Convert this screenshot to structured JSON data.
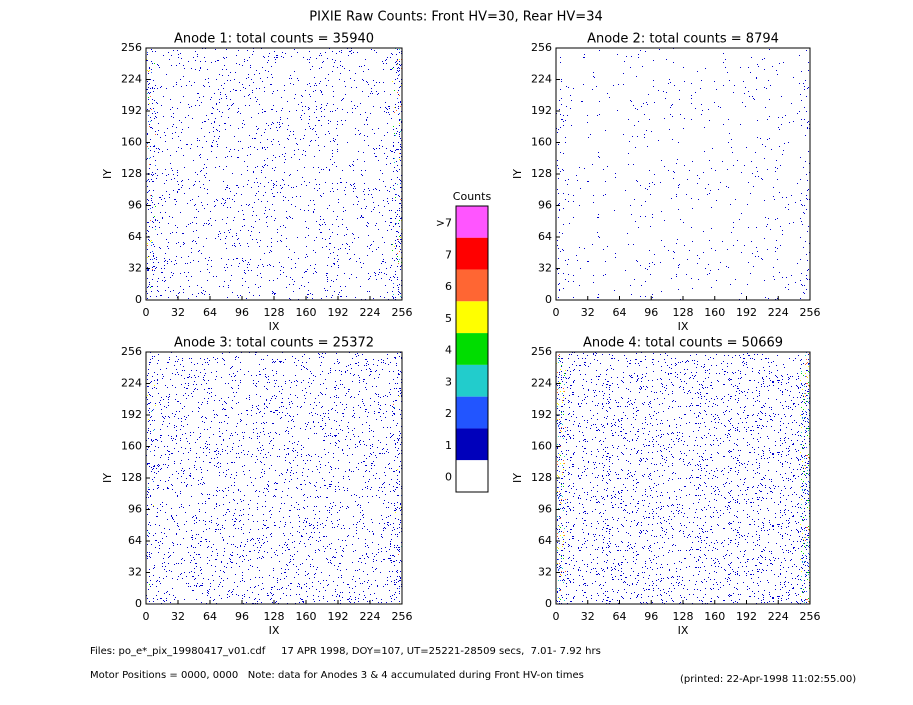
{
  "title": "PIXIE Raw Counts:  Front HV=30, Rear HV=34",
  "chart_data": [
    {
      "type": "heatmap",
      "title": "Anode 1: total counts = 35940",
      "xlabel": "IX",
      "ylabel": "IY",
      "xlim": [
        0,
        256
      ],
      "ylim": [
        0,
        256
      ],
      "xticks": [
        0,
        32,
        64,
        96,
        128,
        160,
        192,
        224,
        256
      ],
      "yticks": [
        0,
        32,
        64,
        96,
        128,
        160,
        192,
        224,
        256
      ]
    },
    {
      "type": "heatmap",
      "title": "Anode 2: total counts = 8794",
      "xlabel": "IX",
      "ylabel": "IY",
      "xlim": [
        0,
        256
      ],
      "ylim": [
        0,
        256
      ],
      "xticks": [
        0,
        32,
        64,
        96,
        128,
        160,
        192,
        224,
        256
      ],
      "yticks": [
        0,
        32,
        64,
        96,
        128,
        160,
        192,
        224,
        256
      ]
    },
    {
      "type": "heatmap",
      "title": "Anode 3: total counts = 25372",
      "xlabel": "IX",
      "ylabel": "IY",
      "xlim": [
        0,
        256
      ],
      "ylim": [
        0,
        256
      ],
      "xticks": [
        0,
        32,
        64,
        96,
        128,
        160,
        192,
        224,
        256
      ],
      "yticks": [
        0,
        32,
        64,
        96,
        128,
        160,
        192,
        224,
        256
      ]
    },
    {
      "type": "heatmap",
      "title": "Anode 4: total counts = 50669",
      "xlabel": "IX",
      "ylabel": "IY",
      "xlim": [
        0,
        256
      ],
      "ylim": [
        0,
        256
      ],
      "xticks": [
        0,
        32,
        64,
        96,
        128,
        160,
        192,
        224,
        256
      ],
      "yticks": [
        0,
        32,
        64,
        96,
        128,
        160,
        192,
        224,
        256
      ]
    }
  ],
  "colorbar": {
    "title": "Counts",
    "categories": [
      ">7",
      "7",
      "6",
      "5",
      "4",
      "3",
      "2",
      "1",
      "0"
    ],
    "colors": [
      "#ff55ff",
      "#ff0000",
      "#ff6633",
      "#ffff00",
      "#00dd00",
      "#22cccc",
      "#2255ff",
      "#0000bb",
      "#ffffff"
    ]
  },
  "footer": {
    "files": "Files: po_e*_pix_19980417_v01.cdf     17 APR 1998, DOY=107, UT=25221-28509 secs,  7.01- 7.92 hrs",
    "motor": "Motor Positions = 0000, 0000   Note: data for Anodes 3 & 4 accumulated during Front HV-on times",
    "printed": "(printed: 22-Apr-1998 11:02:55.00)"
  }
}
